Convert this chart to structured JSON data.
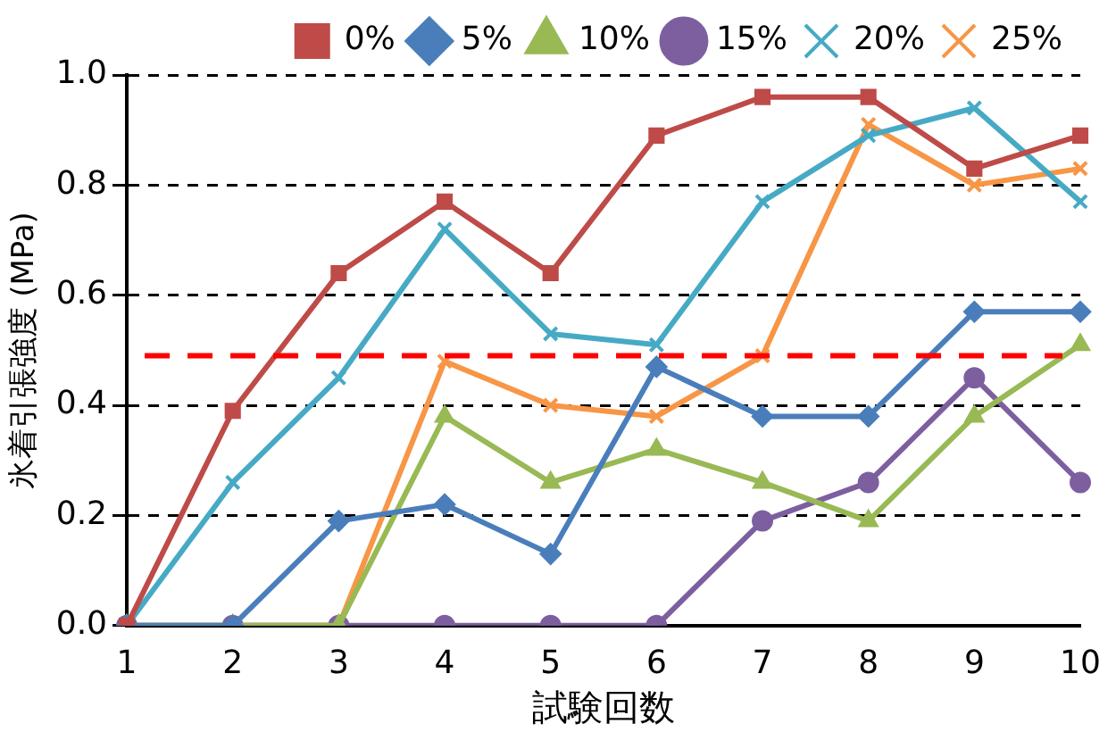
{
  "chart_data": {
    "type": "line",
    "xlabel": "試験回数",
    "ylabel": "氷着引張強度 (MPa)",
    "categories": [
      "1",
      "2",
      "3",
      "4",
      "5",
      "6",
      "7",
      "8",
      "9",
      "10"
    ],
    "ylim": [
      0,
      1
    ],
    "yticks": [
      {
        "value": 0,
        "label": "0.0"
      },
      {
        "value": 0.2,
        "label": "0.2"
      },
      {
        "value": 0.4,
        "label": "0.4"
      },
      {
        "value": 0.6,
        "label": "0.6"
      },
      {
        "value": 0.8,
        "label": "0.8"
      },
      {
        "value": 1,
        "label": "1.0"
      }
    ],
    "grid": "y",
    "legend": "top right",
    "line_style": "solid",
    "ref_lines": [
      {
        "axis": "y",
        "value": 0.49,
        "color": "#ff0000",
        "line_style": "dashed"
      }
    ],
    "series": [
      {
        "name": "0%",
        "color": "#be4b48",
        "marker": "square",
        "values": [
          0,
          0.39,
          0.64,
          0.77,
          0.64,
          0.89,
          0.96,
          0.96,
          0.83,
          0.89
        ]
      },
      {
        "name": "5%",
        "color": "#4a7ebb",
        "marker": "diamond",
        "values": [
          0,
          0,
          0.19,
          0.22,
          0.13,
          0.47,
          0.38,
          0.38,
          0.57,
          0.57
        ]
      },
      {
        "name": "10%",
        "color": "#98b954",
        "marker": "triangle",
        "values": [
          0,
          0,
          0,
          0.38,
          0.26,
          0.32,
          0.26,
          0.19,
          0.38,
          0.51
        ]
      },
      {
        "name": "15%",
        "color": "#7d5fa0",
        "marker": "circle",
        "values": [
          0,
          0,
          0,
          0,
          0,
          0,
          0.19,
          0.26,
          0.45,
          0.26
        ]
      },
      {
        "name": "20%",
        "color": "#46aac5",
        "marker": "cross",
        "values": [
          0,
          0.26,
          0.45,
          0.72,
          0.53,
          0.51,
          0.77,
          0.89,
          0.94,
          0.77
        ]
      },
      {
        "name": "25%",
        "color": "#f79646",
        "marker": "cross",
        "values": [
          0,
          0,
          0,
          0.48,
          0.4,
          0.38,
          0.49,
          0.91,
          0.8,
          0.83
        ]
      }
    ]
  }
}
